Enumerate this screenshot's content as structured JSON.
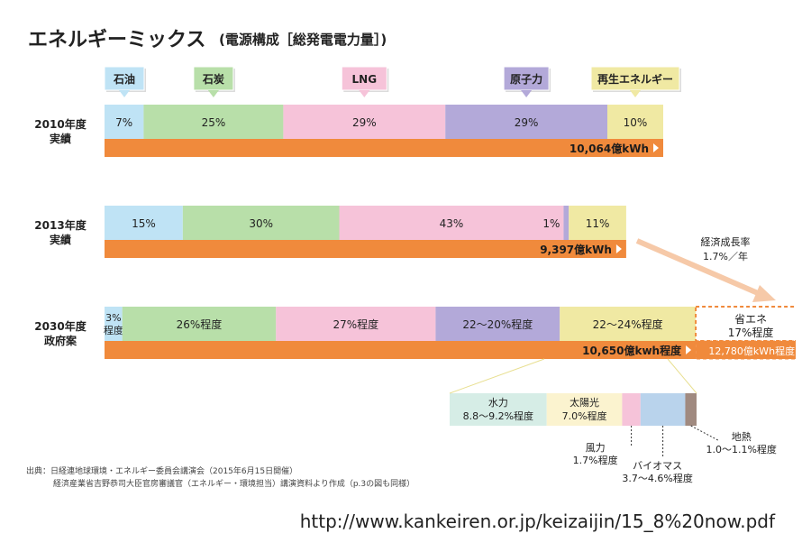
{
  "chart_data": {
    "type": "bar",
    "orientation": "horizontal-stacked-100",
    "title": "エネルギーミックス",
    "subtitle": "(電源構成［総発電電力量］)",
    "sources": [
      {
        "name": "石油",
        "color": "#bfe3f5"
      },
      {
        "name": "石炭",
        "color": "#b8dfa9"
      },
      {
        "name": "LNG",
        "color": "#f6c3d9"
      },
      {
        "name": "原子力",
        "color": "#b3a9d9"
      },
      {
        "name": "再生エネルギー",
        "color": "#f0e9a3"
      }
    ],
    "rows": [
      {
        "label_line1": "2010年度",
        "label_line2": "実績",
        "segments": [
          {
            "source": "石油",
            "value": 7,
            "text": "7%"
          },
          {
            "source": "石炭",
            "value": 25,
            "text": "25%"
          },
          {
            "source": "LNG",
            "value": 29,
            "text": "29%"
          },
          {
            "source": "原子力",
            "value": 29,
            "text": "29%"
          },
          {
            "source": "再生エネルギー",
            "value": 10,
            "text": "10%"
          }
        ],
        "total_kwh_oku": 10064,
        "total_text": "10,064億kWh"
      },
      {
        "label_line1": "2013年度",
        "label_line2": "実績",
        "segments": [
          {
            "source": "石油",
            "value": 15,
            "text": "15%"
          },
          {
            "source": "石炭",
            "value": 30,
            "text": "30%"
          },
          {
            "source": "LNG",
            "value": 43,
            "text": "43%"
          },
          {
            "source": "原子力",
            "value": 1,
            "text": "1%"
          },
          {
            "source": "再生エネルギー",
            "value": 11,
            "text": "11%"
          }
        ],
        "total_kwh_oku": 9397,
        "total_text": "9,397億kWh"
      },
      {
        "label_line1": "2030年度",
        "label_line2": "政府案",
        "segments": [
          {
            "source": "石油",
            "value": 3,
            "text": "3%",
            "text2": "程度"
          },
          {
            "source": "石炭",
            "value": 26,
            "text": "26%程度"
          },
          {
            "source": "LNG",
            "value": 27,
            "text": "27%程度"
          },
          {
            "source": "原子力",
            "value": 21,
            "text": "22～20%程度"
          },
          {
            "source": "再生エネルギー",
            "value": 23,
            "text": "22～24%程度"
          }
        ],
        "total_kwh_oku": 10650,
        "total_text": "10,650億kwh程度",
        "saving": {
          "line1": "省エネ",
          "line2": "17%程度",
          "total_text": "12,780億kWh程度"
        }
      }
    ],
    "growth_note": {
      "line1": "経済成長率",
      "line2": "1.7%／年"
    },
    "renewables_breakdown": [
      {
        "name": "水力",
        "range": "8.8～9.2%程度",
        "value": 9.0,
        "color": "#d6ede6"
      },
      {
        "name": "太陽光",
        "range": "7.0%程度",
        "value": 7.0,
        "color": "#fbf3cf"
      },
      {
        "name": "風力",
        "range": "1.7%程度",
        "value": 1.7,
        "color": "#f6c3d9"
      },
      {
        "name": "バイオマス",
        "range": "3.7～4.6%程度",
        "value": 4.15,
        "color": "#b9d3ec"
      },
      {
        "name": "地熱",
        "range": "1.0～1.1%程度",
        "value": 1.05,
        "color": "#a08a80"
      }
    ]
  },
  "source_note": {
    "line1": "出典：日経連地球環境・エネルギー委員会講演会（2015年6月15日開催）",
    "line2": "経済産業省吉野恭司大臣官房審議官（エネルギー・環境担当）講演資料より作成（p.3の図も同様）"
  },
  "footer_url": "http://www.kankeiren.or.jp/keizaijin/15_8%20now.pdf",
  "colors": {
    "total_bar": "#f08a3c",
    "accent_dark": "#333333"
  }
}
